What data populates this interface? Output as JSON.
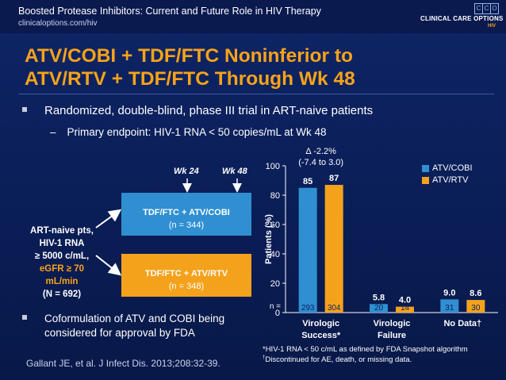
{
  "header": {
    "title": "Boosted Protease Inhibitors: Current and Future Role in HIV Therapy",
    "url": "clinicaloptions.com/hiv",
    "logo_text": "CLINICAL CARE OPTIONS",
    "logo_sub": "HIV",
    "logo_letters": [
      "C",
      "C",
      "O"
    ]
  },
  "slide": {
    "title_line1": "ATV/COBI + TDF/FTC Noninferior to",
    "title_line2": "ATV/RTV + TDF/FTC Through Wk 48",
    "bullet1": "Randomized, double-blind, phase III trial in ART-naive patients",
    "bullet1_sub_dash": "–",
    "bullet1_sub": "Primary endpoint: HIV-1 RNA < 50 copies/mL at Wk 48",
    "bullet2_line1": "Coformulation of ATV and COBI being",
    "bullet2_line2": "considered for approval by FDA",
    "citation": "Gallant JE, et al. J Infect Dis. 2013;208:32-39."
  },
  "design": {
    "patients_line1": "ART-naive pts,",
    "patients_line2": "HIV-1 RNA",
    "patients_line3": "≥ 5000 c/mL,",
    "patients_line4": "eGFR ≥ 70",
    "patients_line5": "mL/min",
    "patients_line6": "(N = 692)",
    "arm1_label": "TDF/FTC + ATV/COBI",
    "arm1_n": "(n = 344)",
    "arm2_label": "TDF/FTC + ATV/RTV",
    "arm2_n": "(n = 348)",
    "wk24": "Wk 24",
    "wk48": "Wk 48"
  },
  "footnotes": {
    "note1": "*HIV-1 RNA < 50 c/mL as defined by FDA Snapshot algorithm",
    "note2_mark": "†",
    "note2": "Discontinued for AE, death, or missing data."
  },
  "colors": {
    "accent_orange": "#f4a21c",
    "atv_cobi_blue": "#2f8fd1",
    "background_navy": "#0c1f5c"
  },
  "chart_data": {
    "type": "bar",
    "ylabel": "Patients (%)",
    "ylim": [
      0,
      100
    ],
    "yticks": [
      "0",
      "20",
      "40",
      "60",
      "80",
      "100"
    ],
    "n_prefix": "n =",
    "annotation_line1": "Δ -2.2%",
    "annotation_line2": "(-7.4 to 3.0)",
    "legend_position": "top-right",
    "categories": [
      {
        "line1": "Virologic",
        "line2": "Success*"
      },
      {
        "line1": "Virologic",
        "line2": "Failure"
      },
      {
        "line1": "No Data†",
        "line2": ""
      }
    ],
    "series": [
      {
        "name": "ATV/COBI",
        "color": "#2f8fd1",
        "values": [
          85,
          5.8,
          9.0
        ],
        "labels": [
          "85",
          "5.8",
          "9.0"
        ],
        "n": [
          "293",
          "20",
          "31"
        ]
      },
      {
        "name": "ATV/RTV",
        "color": "#f4a21c",
        "values": [
          87,
          4.0,
          8.6
        ],
        "labels": [
          "87",
          "4.0",
          "8.6"
        ],
        "n": [
          "304",
          "14",
          "30"
        ]
      }
    ]
  }
}
